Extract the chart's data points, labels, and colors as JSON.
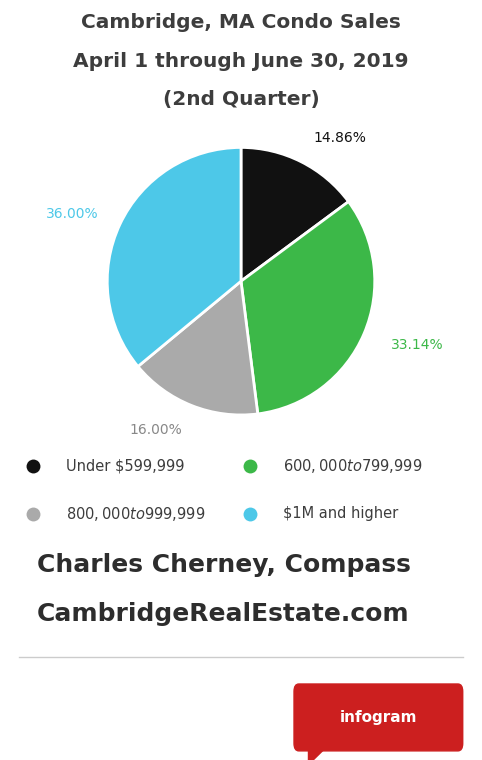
{
  "title_line1": "Cambridge, MA Condo Sales",
  "title_line2": "April 1 through June 30, 2019",
  "title_line3": "(2nd Quarter)",
  "slices": [
    14.86,
    33.14,
    16.0,
    36.0
  ],
  "colors": [
    "#111111",
    "#3cb848",
    "#aaaaaa",
    "#4dc8e8"
  ],
  "labels": [
    "Under $599,999",
    "$600,000 to $799,999",
    "$800,000 to $999,999",
    "$1M and higher"
  ],
  "pct_labels": [
    "14.86%",
    "33.14%",
    "16.00%",
    "36.00%"
  ],
  "pct_colors": [
    "#111111",
    "#3cb848",
    "#888888",
    "#4dc8e8"
  ],
  "footer_line1": "Charles Cherney, Compass",
  "footer_line2": "CambridgeRealEstate.com",
  "bg_color": "#ffffff",
  "title_color": "#3d3d3d",
  "footer_color": "#2d2d2d",
  "legend_color": "#3d3d3d",
  "separator_color": "#cccccc",
  "badge_color": "#cc1f1f",
  "badge_text": "infogram"
}
